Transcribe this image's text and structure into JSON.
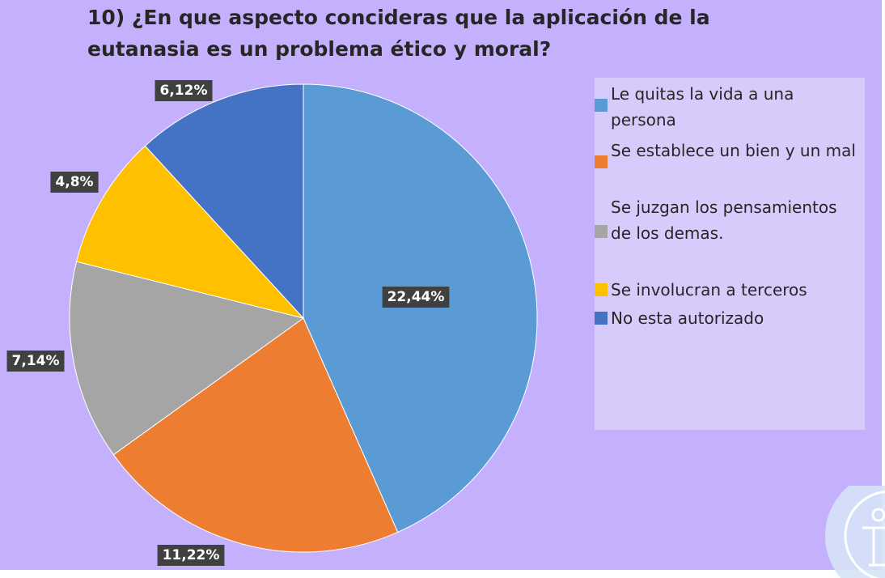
{
  "title": "10) ¿En que aspecto concideras que la aplicación de la eutanasia es un problema ético y moral?",
  "chart_data": {
    "type": "pie",
    "title": "10) ¿En que aspecto concideras que la aplicación de la eutanasia es un problema ético y moral?",
    "legend_position": "right",
    "slices": [
      {
        "name": "Le quitas la vida a una persona",
        "value": 22.44,
        "label": "22,44%",
        "color": "#5b9bd5"
      },
      {
        "name": "Se establece un bien y un mal",
        "value": 11.22,
        "label": "11,22%",
        "color": "#ed7d31"
      },
      {
        "name": "Se juzgan los pensamientos de los demas.",
        "value": 7.14,
        "label": "7,14%",
        "color": "#a5a5a5"
      },
      {
        "name": "Se involucran a terceros",
        "value": 4.8,
        "label": "4,8%",
        "color": "#ffc000"
      },
      {
        "name": "No esta autorizado",
        "value": 6.12,
        "label": "6,12%",
        "color": "#4472c4"
      }
    ]
  }
}
